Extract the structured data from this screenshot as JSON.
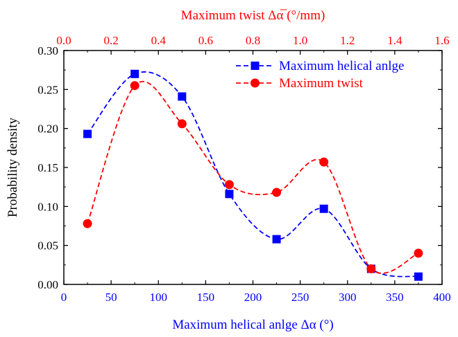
{
  "chart_data": {
    "type": "scatter",
    "xlabel": "Maximum helical anlge Δα (°)",
    "ylabel": "Probability density",
    "x2label": "Maximum twist Δα̅ (°/mm)",
    "xlim": [
      0,
      400
    ],
    "ylim": [
      0,
      0.3
    ],
    "x2lim": [
      0,
      1.6
    ],
    "x_ticks": [
      "0",
      "50",
      "100",
      "150",
      "200",
      "250",
      "300",
      "350",
      "400"
    ],
    "y_ticks": [
      "0.00",
      "0.05",
      "0.10",
      "0.15",
      "0.20",
      "0.25",
      "0.30"
    ],
    "x2_ticks": [
      "0.0",
      "0.2",
      "0.4",
      "0.6",
      "0.8",
      "1.0",
      "1.2",
      "1.4",
      "1.6"
    ],
    "legend_position": "top-right",
    "series": [
      {
        "name": "Maximum helical anlge",
        "color": "#0000ff",
        "marker": "square",
        "axis": "bottom",
        "points": [
          [
            25,
            0.193
          ],
          [
            75,
            0.27
          ],
          [
            125,
            0.241
          ],
          [
            175,
            0.116
          ],
          [
            225,
            0.058
          ],
          [
            275,
            0.097
          ],
          [
            325,
            0.02
          ],
          [
            375,
            0.01
          ]
        ]
      },
      {
        "name": "Maximum twist",
        "color": "#ff0000",
        "marker": "circle",
        "axis": "top",
        "points": [
          [
            0.1,
            0.078
          ],
          [
            0.3,
            0.255
          ],
          [
            0.5,
            0.206
          ],
          [
            0.7,
            0.128
          ],
          [
            0.9,
            0.118
          ],
          [
            1.1,
            0.157
          ],
          [
            1.3,
            0.02
          ],
          [
            1.5,
            0.04
          ]
        ]
      }
    ]
  }
}
